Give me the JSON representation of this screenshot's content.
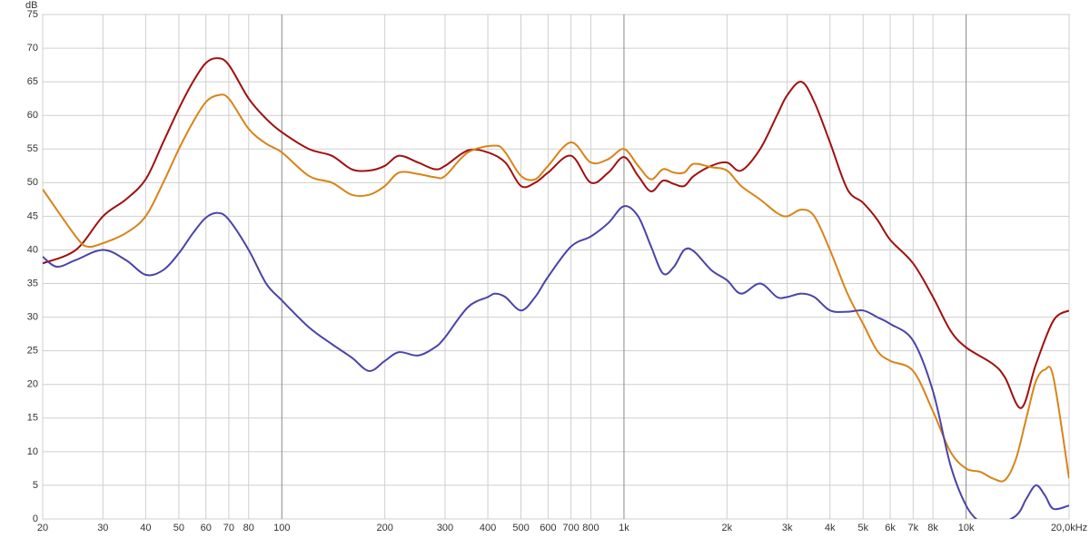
{
  "chart_data": {
    "type": "line",
    "y_label": "dB",
    "xscale": "log",
    "grid": true,
    "xlim": [
      20,
      20000
    ],
    "ylim": [
      0,
      75
    ],
    "yticks": [
      0,
      5,
      10,
      15,
      20,
      25,
      30,
      35,
      40,
      45,
      50,
      55,
      60,
      65,
      70,
      75
    ],
    "xticks": [
      20,
      30,
      40,
      50,
      60,
      70,
      80,
      100,
      200,
      300,
      400,
      500,
      600,
      700,
      800,
      {
        "value": 1000,
        "label": "1k"
      },
      {
        "value": 2000,
        "label": "2k"
      },
      {
        "value": 3000,
        "label": "3k"
      },
      {
        "value": 4000,
        "label": "4k"
      },
      {
        "value": 5000,
        "label": "5k"
      },
      {
        "value": 6000,
        "label": "6k"
      },
      {
        "value": 7000,
        "label": "7k"
      },
      {
        "value": 8000,
        "label": "8k"
      },
      {
        "value": 10000,
        "label": "10k"
      },
      {
        "value": 20000,
        "label": "20,0kHz"
      }
    ],
    "series": [
      {
        "color": "#a01010",
        "x": [
          20,
          25,
          30,
          35,
          40,
          45,
          50,
          55,
          60,
          65,
          70,
          80,
          90,
          100,
          120,
          140,
          160,
          180,
          200,
          220,
          250,
          280,
          300,
          350,
          400,
          450,
          500,
          550,
          600,
          700,
          800,
          900,
          1000,
          1100,
          1200,
          1300,
          1400,
          1500,
          1600,
          1800,
          2000,
          2200,
          2500,
          2800,
          3000,
          3300,
          3600,
          4000,
          4500,
          5000,
          5500,
          6000,
          7000,
          8000,
          9000,
          10000,
          12000,
          13000,
          14500,
          16000,
          18000,
          20000
        ],
        "values": [
          38,
          40,
          45,
          47.5,
          50.5,
          56,
          61,
          65,
          67.8,
          68.5,
          67.5,
          62.5,
          59.5,
          57.5,
          55,
          54,
          52,
          51.8,
          52.5,
          54,
          53,
          52,
          52.5,
          54.8,
          54.5,
          53,
          49.5,
          50,
          51.5,
          54,
          50,
          51.5,
          53.8,
          51,
          48.7,
          50.3,
          49.8,
          49.5,
          51,
          52.5,
          53,
          51.8,
          55,
          60,
          63,
          65,
          62,
          56,
          49,
          47,
          44.5,
          41.5,
          38,
          33,
          28,
          25.5,
          23,
          21,
          16.5,
          23,
          29.5,
          31
        ]
      },
      {
        "color": "#d88418",
        "x": [
          20,
          25,
          27,
          30,
          35,
          40,
          45,
          50,
          55,
          60,
          65,
          70,
          80,
          90,
          100,
          120,
          140,
          160,
          180,
          200,
          220,
          250,
          280,
          300,
          350,
          420,
          450,
          500,
          550,
          600,
          700,
          800,
          900,
          1000,
          1100,
          1200,
          1300,
          1400,
          1500,
          1600,
          1800,
          2000,
          2200,
          2500,
          2800,
          3000,
          3300,
          3600,
          4000,
          4500,
          5000,
          5500,
          6000,
          7000,
          8000,
          9000,
          10000,
          11000,
          12000,
          13000,
          14000,
          15000,
          16000,
          17000,
          18000,
          20000
        ],
        "values": [
          49,
          42,
          40.5,
          41,
          42.5,
          45,
          50,
          55,
          59,
          62,
          63,
          62.5,
          58,
          55.8,
          54.5,
          51,
          50,
          48.2,
          48.2,
          49.5,
          51.5,
          51.3,
          50.8,
          51,
          54.5,
          55.5,
          54.5,
          51,
          50.5,
          52.5,
          56,
          53,
          53.5,
          55,
          52.5,
          50.5,
          52,
          51.5,
          51.5,
          52.8,
          52.3,
          51.8,
          49.5,
          47.5,
          45.5,
          45,
          46,
          45,
          40,
          33.5,
          29,
          25,
          23.5,
          22,
          16,
          10,
          7.5,
          7,
          6,
          5.8,
          9,
          15,
          20.5,
          22.2,
          21,
          6
        ]
      },
      {
        "color": "#4a44a8",
        "x": [
          20,
          22,
          25,
          30,
          35,
          40,
          45,
          50,
          55,
          60,
          65,
          70,
          80,
          90,
          100,
          120,
          140,
          160,
          180,
          200,
          220,
          250,
          280,
          300,
          350,
          400,
          420,
          450,
          500,
          550,
          600,
          700,
          800,
          900,
          1000,
          1100,
          1200,
          1300,
          1400,
          1500,
          1600,
          1800,
          2000,
          2200,
          2500,
          2800,
          3000,
          3300,
          3600,
          4000,
          4500,
          5000,
          5500,
          6000,
          7000,
          8000,
          9000,
          10000,
          11000,
          12000,
          14000,
          15000,
          16000,
          17000,
          18000,
          20000
        ],
        "values": [
          39,
          37.5,
          38.5,
          40,
          38.5,
          36.3,
          37,
          39.5,
          42.5,
          44.8,
          45.5,
          44.5,
          40,
          35,
          32.5,
          28.5,
          26,
          24,
          22,
          23.5,
          24.8,
          24.3,
          25.5,
          27,
          31.5,
          33,
          33.5,
          33,
          31,
          33,
          36,
          40.5,
          42,
          44,
          46.5,
          45,
          40.5,
          36.5,
          37.5,
          40,
          39.8,
          37,
          35.5,
          33.5,
          35,
          33,
          33,
          33.5,
          33,
          31,
          30.8,
          31,
          30,
          29,
          26.5,
          19,
          8,
          2,
          -0.5,
          -1,
          0.5,
          3,
          5,
          3.5,
          1.5,
          2
        ]
      }
    ]
  }
}
